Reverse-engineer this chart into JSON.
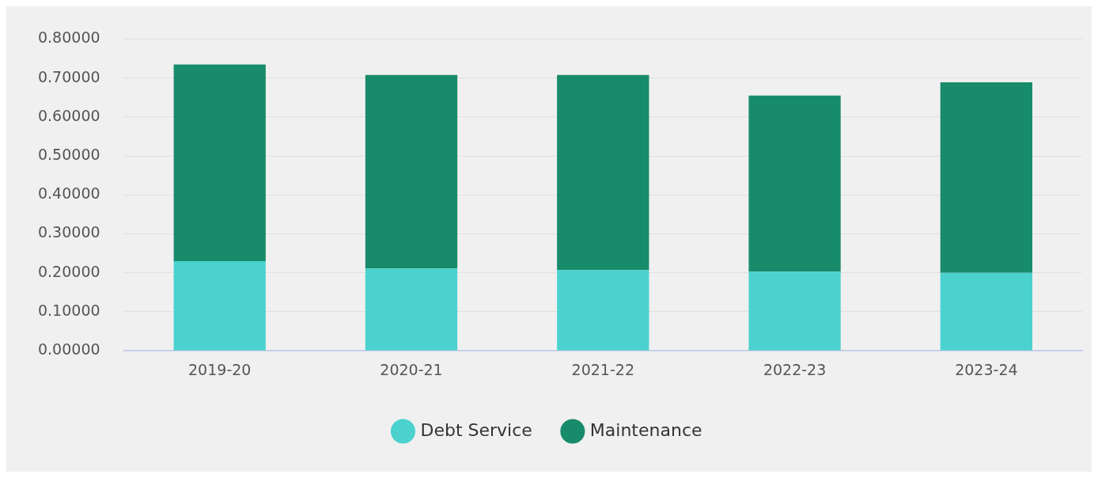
{
  "chart_data": {
    "type": "bar",
    "stacked": true,
    "categories": [
      "2019-20",
      "2020-21",
      "2021-22",
      "2022-23",
      "2023-24"
    ],
    "series": [
      {
        "name": "Debt Service",
        "color": "#4bd2cf",
        "values": [
          0.23,
          0.211,
          0.207,
          0.203,
          0.2
        ]
      },
      {
        "name": "Maintenance",
        "color": "#188b6a",
        "values": [
          0.505,
          0.497,
          0.501,
          0.452,
          0.489
        ]
      }
    ],
    "ylim": [
      0,
      0.8
    ],
    "yticks": [
      {
        "value": 0,
        "label": "0.00000"
      },
      {
        "value": 0.1,
        "label": "0.10000"
      },
      {
        "value": 0.2,
        "label": "0.20000"
      },
      {
        "value": 0.3,
        "label": "0.30000"
      },
      {
        "value": 0.4,
        "label": "0.40000"
      },
      {
        "value": 0.5,
        "label": "0.50000"
      },
      {
        "value": 0.6,
        "label": "0.60000"
      },
      {
        "value": 0.7,
        "label": "0.70000"
      },
      {
        "value": 0.8,
        "label": "0.80000"
      }
    ],
    "grid": "y",
    "legend": "bottom"
  }
}
